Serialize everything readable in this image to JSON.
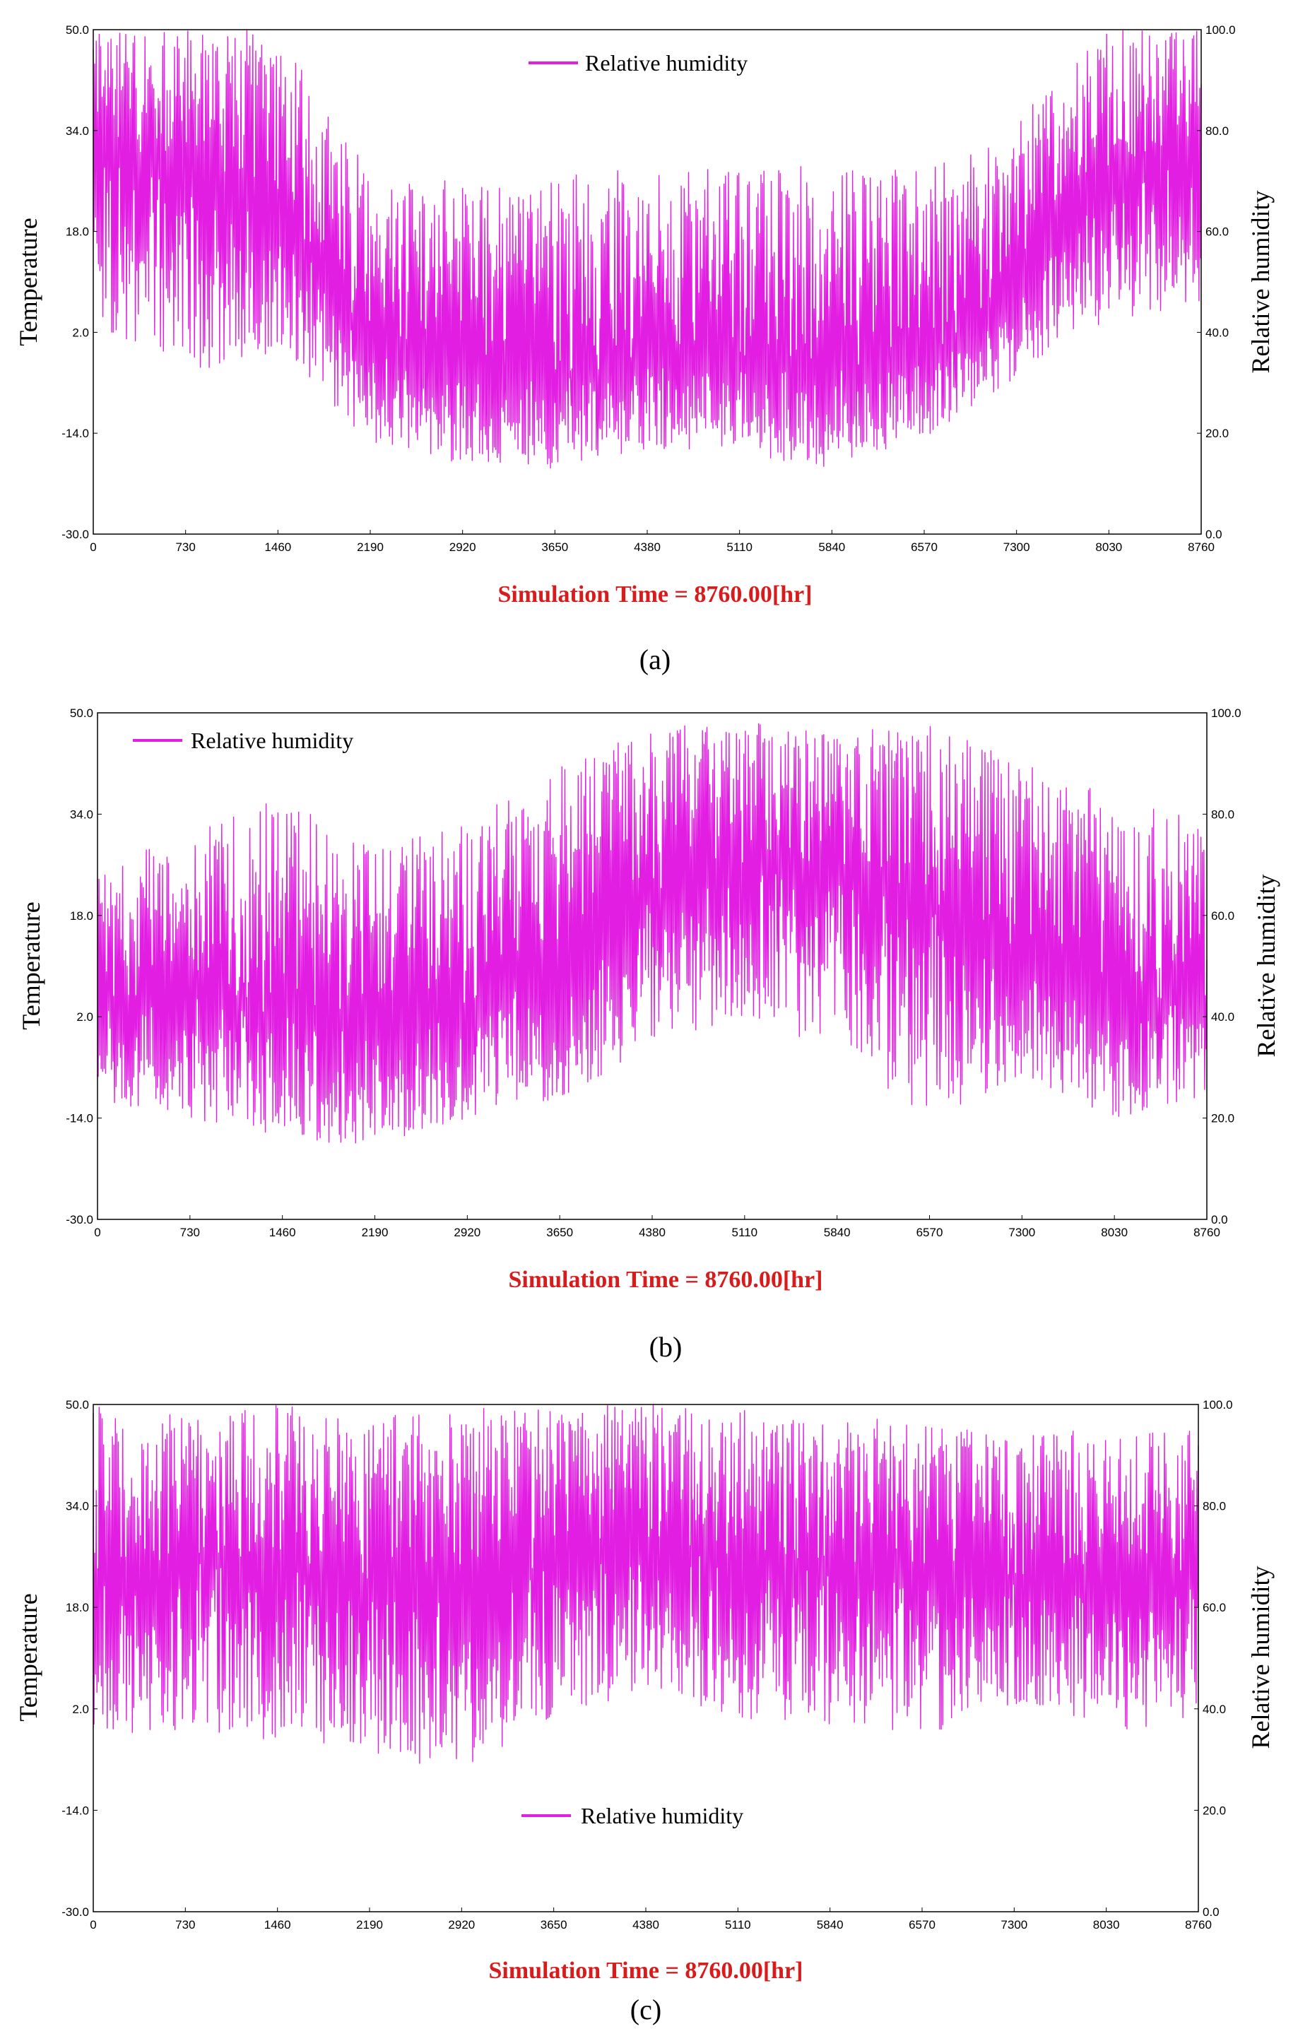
{
  "colors": {
    "series": "#e21ee2",
    "frame": "#000000",
    "sim_time": "#d81b1b"
  },
  "chart_data": [
    {
      "type": "line",
      "panel": "(a)",
      "xlabel": "Simulation Time = 8760.00[hr]",
      "ylabel_left": "Temperature",
      "ylabel_right": "Relative humidity",
      "legend": {
        "label": "Relative humidity",
        "position": "top-center"
      },
      "x_ticks": [
        "0",
        "730",
        "1460",
        "2190",
        "2920",
        "3650",
        "4380",
        "5110",
        "5840",
        "6570",
        "7300",
        "8030",
        "8760"
      ],
      "left_ticks": [
        "50.0",
        "34.0",
        "18.0",
        "2.0",
        "-14.0",
        "-30.0"
      ],
      "right_ticks": [
        "100.0",
        "80.0",
        "60.0",
        "40.0",
        "20.0",
        "0.0"
      ],
      "xlim": [
        0,
        8760
      ],
      "ylim_right": [
        0,
        100
      ],
      "series": [
        {
          "name": "Relative humidity",
          "x": [
            0,
            730,
            1460,
            2190,
            2920,
            3650,
            4380,
            5110,
            5840,
            6570,
            7300,
            8030,
            8760
          ],
          "mean": [
            74,
            71,
            64,
            37,
            32,
            31,
            33,
            34,
            33,
            34,
            47,
            72,
            76
          ],
          "max": [
            100,
            100,
            100,
            72,
            70,
            71,
            74,
            73,
            74,
            72,
            82,
            100,
            100
          ],
          "min": [
            42,
            32,
            36,
            18,
            14,
            13,
            17,
            16,
            13,
            19,
            31,
            42,
            46
          ]
        }
      ]
    },
    {
      "type": "line",
      "panel": "(b)",
      "xlabel": "Simulation Time = 8760.00[hr]",
      "ylabel_left": "Temperature",
      "ylabel_right": "Relative humidity",
      "legend": {
        "label": "Relative humidity",
        "position": "top-left"
      },
      "x_ticks": [
        "0",
        "730",
        "1460",
        "2190",
        "2920",
        "3650",
        "4380",
        "5110",
        "5840",
        "6570",
        "7300",
        "8030",
        "8760"
      ],
      "left_ticks": [
        "50.0",
        "34.0",
        "18.0",
        "2.0",
        "-14.0",
        "-30.0"
      ],
      "right_ticks": [
        "100.0",
        "80.0",
        "60.0",
        "40.0",
        "20.0",
        "0.0"
      ],
      "xlim": [
        0,
        8760
      ],
      "ylim_right": [
        0,
        100
      ],
      "series": [
        {
          "name": "Relative humidity",
          "x": [
            0,
            730,
            1460,
            2190,
            2920,
            3650,
            4380,
            5110,
            5840,
            6570,
            7300,
            8030,
            8760
          ],
          "mean": [
            42,
            44,
            40,
            37,
            42,
            48,
            64,
            70,
            70,
            63,
            52,
            44,
            42
          ],
          "max": [
            70,
            76,
            84,
            73,
            79,
            90,
            98,
            99,
            97,
            98,
            90,
            84,
            78
          ],
          "min": [
            22,
            20,
            16,
            14,
            20,
            24,
            34,
            40,
            33,
            20,
            28,
            20,
            24
          ]
        }
      ]
    },
    {
      "type": "line",
      "panel": "(c)",
      "xlabel": "Simulation Time = 8760.00[hr]",
      "ylabel_left": "Temperature",
      "ylabel_right": "Relative humidity",
      "legend": {
        "label": "Relative humidity",
        "position": "bottom-center"
      },
      "x_ticks": [
        "0",
        "730",
        "1460",
        "2190",
        "2920",
        "3650",
        "4380",
        "5110",
        "5840",
        "6570",
        "7300",
        "8030",
        "8760"
      ],
      "left_ticks": [
        "50.0",
        "34.0",
        "18.0",
        "2.0",
        "-14.0",
        "-30.0"
      ],
      "right_ticks": [
        "100.0",
        "80.0",
        "60.0",
        "40.0",
        "20.0",
        "0.0"
      ],
      "xlim": [
        0,
        8760
      ],
      "ylim_right": [
        0,
        100
      ],
      "series": [
        {
          "name": "Relative humidity",
          "x": [
            0,
            730,
            1460,
            2190,
            2920,
            3650,
            4380,
            5110,
            5840,
            6570,
            7300,
            8030,
            8760
          ],
          "mean": [
            66,
            70,
            68,
            64,
            65,
            68,
            72,
            69,
            68,
            67,
            66,
            65,
            64
          ],
          "max": [
            100,
            98,
            100,
            97,
            100,
            100,
            100,
            99,
            98,
            97,
            94,
            96,
            95
          ],
          "min": [
            34,
            36,
            33,
            30,
            28,
            38,
            44,
            38,
            37,
            34,
            40,
            36,
            36
          ]
        }
      ]
    }
  ]
}
